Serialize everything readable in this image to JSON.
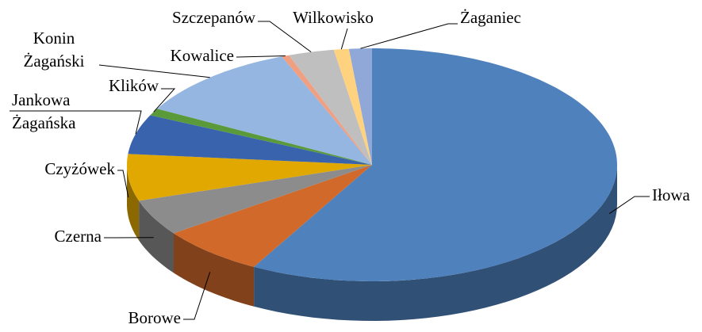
{
  "chart_data": {
    "type": "pie3d",
    "categories": [
      "Iłowa",
      "Borowe",
      "Czerna",
      "Czyżówek",
      "Jankowa Żagańska",
      "Klików",
      "Konin Żagański",
      "Kowalice",
      "Szczepanów",
      "Wilkowisko",
      "Żaganiec"
    ],
    "values": [
      58,
      7,
      5,
      6.5,
      5.5,
      1,
      11,
      0.5,
      3,
      1,
      1.5
    ],
    "colors": [
      "#4f81bd",
      "#d0692a",
      "#8c8c8c",
      "#e0a800",
      "#3a63ad",
      "#5a9a3a",
      "#94b6e0",
      "#f0a080",
      "#bfbfbf",
      "#ffd27f",
      "#8fa8d8"
    ]
  }
}
